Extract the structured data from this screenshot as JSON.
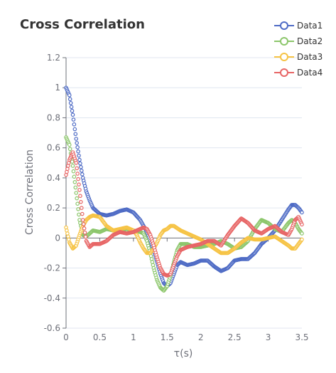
{
  "chart_data": {
    "type": "scatter",
    "title": "Cross Correlation",
    "xlabel": "τ(s)",
    "ylabel": "Cross Correlation",
    "xlim": [
      0,
      3.5
    ],
    "ylim": [
      -0.6,
      1.2
    ],
    "xticks": [
      "0",
      "0.5",
      "1",
      "1.5",
      "2",
      "2.5",
      "3",
      "3.5"
    ],
    "yticks": [
      "-0.6",
      "-0.4",
      "-0.2",
      "0",
      "0.2",
      "0.4",
      "0.6",
      "0.8",
      "1",
      "1.2"
    ],
    "grid": "horizontal",
    "legend_position": "top-right",
    "series": [
      {
        "name": "Data1",
        "color": "#4e6bc5",
        "points": [
          [
            0,
            1.0
          ],
          [
            0.05,
            0.95
          ],
          [
            0.1,
            0.82
          ],
          [
            0.15,
            0.66
          ],
          [
            0.2,
            0.52
          ],
          [
            0.25,
            0.4
          ],
          [
            0.3,
            0.31
          ],
          [
            0.35,
            0.25
          ],
          [
            0.4,
            0.2
          ],
          [
            0.5,
            0.16
          ],
          [
            0.6,
            0.15
          ],
          [
            0.7,
            0.16
          ],
          [
            0.8,
            0.18
          ],
          [
            0.9,
            0.19
          ],
          [
            1.0,
            0.17
          ],
          [
            1.1,
            0.12
          ],
          [
            1.15,
            0.08
          ],
          [
            1.2,
            0.04
          ],
          [
            1.25,
            -0.02
          ],
          [
            1.3,
            -0.08
          ],
          [
            1.35,
            -0.16
          ],
          [
            1.4,
            -0.24
          ],
          [
            1.45,
            -0.3
          ],
          [
            1.5,
            -0.32
          ],
          [
            1.55,
            -0.3
          ],
          [
            1.6,
            -0.24
          ],
          [
            1.65,
            -0.18
          ],
          [
            1.7,
            -0.16
          ],
          [
            1.8,
            -0.18
          ],
          [
            1.9,
            -0.17
          ],
          [
            2.0,
            -0.15
          ],
          [
            2.1,
            -0.15
          ],
          [
            2.2,
            -0.19
          ],
          [
            2.3,
            -0.22
          ],
          [
            2.4,
            -0.2
          ],
          [
            2.5,
            -0.15
          ],
          [
            2.6,
            -0.14
          ],
          [
            2.7,
            -0.14
          ],
          [
            2.8,
            -0.1
          ],
          [
            2.9,
            -0.04
          ],
          [
            3.0,
            0.0
          ],
          [
            3.1,
            0.05
          ],
          [
            3.2,
            0.12
          ],
          [
            3.3,
            0.19
          ],
          [
            3.35,
            0.22
          ],
          [
            3.4,
            0.22
          ],
          [
            3.45,
            0.2
          ],
          [
            3.5,
            0.17
          ]
        ]
      },
      {
        "name": "Data2",
        "color": "#8cc66b",
        "points": [
          [
            0,
            0.67
          ],
          [
            0.05,
            0.62
          ],
          [
            0.1,
            0.48
          ],
          [
            0.15,
            0.3
          ],
          [
            0.2,
            0.12
          ],
          [
            0.25,
            0.02
          ],
          [
            0.3,
            0.01
          ],
          [
            0.35,
            0.03
          ],
          [
            0.4,
            0.05
          ],
          [
            0.5,
            0.04
          ],
          [
            0.6,
            0.06
          ],
          [
            0.7,
            0.05
          ],
          [
            0.8,
            0.05
          ],
          [
            0.9,
            0.06
          ],
          [
            1.0,
            0.05
          ],
          [
            1.1,
            0.04
          ],
          [
            1.15,
            0.03
          ],
          [
            1.2,
            -0.02
          ],
          [
            1.25,
            -0.1
          ],
          [
            1.3,
            -0.2
          ],
          [
            1.35,
            -0.28
          ],
          [
            1.4,
            -0.33
          ],
          [
            1.45,
            -0.35
          ],
          [
            1.5,
            -0.32
          ],
          [
            1.55,
            -0.25
          ],
          [
            1.6,
            -0.16
          ],
          [
            1.65,
            -0.08
          ],
          [
            1.7,
            -0.04
          ],
          [
            1.8,
            -0.04
          ],
          [
            1.9,
            -0.06
          ],
          [
            2.0,
            -0.06
          ],
          [
            2.1,
            -0.05
          ],
          [
            2.2,
            -0.04
          ],
          [
            2.3,
            -0.02
          ],
          [
            2.4,
            -0.04
          ],
          [
            2.5,
            -0.07
          ],
          [
            2.6,
            -0.06
          ],
          [
            2.7,
            -0.02
          ],
          [
            2.8,
            0.06
          ],
          [
            2.9,
            0.12
          ],
          [
            3.0,
            0.1
          ],
          [
            3.1,
            0.06
          ],
          [
            3.2,
            0.04
          ],
          [
            3.3,
            0.1
          ],
          [
            3.35,
            0.12
          ],
          [
            3.4,
            0.1
          ],
          [
            3.45,
            0.06
          ],
          [
            3.5,
            0.03
          ]
        ]
      },
      {
        "name": "Data3",
        "color": "#f6c344",
        "points": [
          [
            0,
            0.07
          ],
          [
            0.05,
            -0.03
          ],
          [
            0.1,
            -0.07
          ],
          [
            0.15,
            -0.05
          ],
          [
            0.2,
            0.02
          ],
          [
            0.25,
            0.08
          ],
          [
            0.3,
            0.12
          ],
          [
            0.35,
            0.14
          ],
          [
            0.4,
            0.15
          ],
          [
            0.5,
            0.14
          ],
          [
            0.6,
            0.08
          ],
          [
            0.7,
            0.05
          ],
          [
            0.8,
            0.06
          ],
          [
            0.9,
            0.07
          ],
          [
            1.0,
            0.05
          ],
          [
            1.05,
            0.02
          ],
          [
            1.1,
            -0.03
          ],
          [
            1.15,
            -0.07
          ],
          [
            1.2,
            -0.1
          ],
          [
            1.25,
            -0.1
          ],
          [
            1.3,
            -0.07
          ],
          [
            1.35,
            -0.03
          ],
          [
            1.4,
            0.02
          ],
          [
            1.45,
            0.05
          ],
          [
            1.5,
            0.06
          ],
          [
            1.55,
            0.08
          ],
          [
            1.6,
            0.08
          ],
          [
            1.7,
            0.05
          ],
          [
            1.8,
            0.03
          ],
          [
            1.9,
            0.01
          ],
          [
            2.0,
            -0.01
          ],
          [
            2.1,
            -0.04
          ],
          [
            2.2,
            -0.07
          ],
          [
            2.3,
            -0.1
          ],
          [
            2.4,
            -0.1
          ],
          [
            2.5,
            -0.07
          ],
          [
            2.6,
            -0.03
          ],
          [
            2.7,
            0.0
          ],
          [
            2.8,
            -0.01
          ],
          [
            2.9,
            -0.01
          ],
          [
            3.0,
            0.0
          ],
          [
            3.1,
            0.01
          ],
          [
            3.2,
            -0.02
          ],
          [
            3.3,
            -0.05
          ],
          [
            3.35,
            -0.07
          ],
          [
            3.4,
            -0.07
          ],
          [
            3.45,
            -0.04
          ],
          [
            3.5,
            -0.01
          ]
        ]
      },
      {
        "name": "Data4",
        "color": "#e76565",
        "points": [
          [
            0,
            0.42
          ],
          [
            0.05,
            0.52
          ],
          [
            0.1,
            0.57
          ],
          [
            0.15,
            0.5
          ],
          [
            0.2,
            0.32
          ],
          [
            0.25,
            0.12
          ],
          [
            0.3,
            -0.02
          ],
          [
            0.35,
            -0.06
          ],
          [
            0.4,
            -0.04
          ],
          [
            0.5,
            -0.04
          ],
          [
            0.6,
            -0.02
          ],
          [
            0.7,
            0.02
          ],
          [
            0.8,
            0.04
          ],
          [
            0.9,
            0.03
          ],
          [
            1.0,
            0.04
          ],
          [
            1.1,
            0.06
          ],
          [
            1.15,
            0.07
          ],
          [
            1.2,
            0.06
          ],
          [
            1.25,
            0.02
          ],
          [
            1.3,
            -0.05
          ],
          [
            1.35,
            -0.13
          ],
          [
            1.4,
            -0.2
          ],
          [
            1.45,
            -0.24
          ],
          [
            1.5,
            -0.25
          ],
          [
            1.55,
            -0.24
          ],
          [
            1.6,
            -0.18
          ],
          [
            1.65,
            -0.12
          ],
          [
            1.7,
            -0.08
          ],
          [
            1.8,
            -0.06
          ],
          [
            1.9,
            -0.05
          ],
          [
            2.0,
            -0.04
          ],
          [
            2.1,
            -0.02
          ],
          [
            2.2,
            -0.02
          ],
          [
            2.3,
            -0.05
          ],
          [
            2.4,
            0.02
          ],
          [
            2.5,
            0.08
          ],
          [
            2.6,
            0.13
          ],
          [
            2.7,
            0.1
          ],
          [
            2.8,
            0.05
          ],
          [
            2.9,
            0.03
          ],
          [
            3.0,
            0.06
          ],
          [
            3.1,
            0.08
          ],
          [
            3.2,
            0.04
          ],
          [
            3.3,
            0.02
          ],
          [
            3.35,
            0.06
          ],
          [
            3.4,
            0.12
          ],
          [
            3.45,
            0.14
          ],
          [
            3.5,
            0.09
          ]
        ]
      }
    ]
  }
}
